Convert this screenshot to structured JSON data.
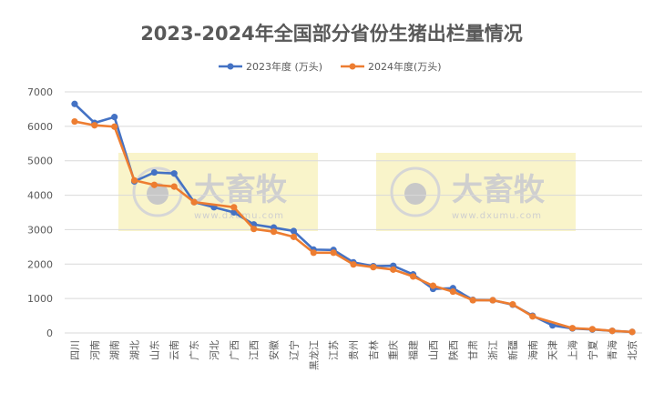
{
  "chart_data": {
    "type": "line",
    "title": "2023-2024年全国部分省份生猪出栏量情况",
    "xlabel": "",
    "ylabel": "",
    "ylim": [
      0,
      7000
    ],
    "yticks": [
      0,
      1000,
      2000,
      3000,
      4000,
      5000,
      6000,
      7000
    ],
    "grid": true,
    "legend_position": "top",
    "categories": [
      "四川",
      "河南",
      "湖南",
      "湖北",
      "山东",
      "云南",
      "广东",
      "河北",
      "广西",
      "江西",
      "安徽",
      "辽宁",
      "黑龙江",
      "江苏",
      "贵州",
      "吉林",
      "重庆",
      "福建",
      "山西",
      "陕西",
      "甘肃",
      "浙江",
      "新疆",
      "海南",
      "天津",
      "上海",
      "宁夏",
      "青海",
      "北京"
    ],
    "series": [
      {
        "name": "2023年度 (万头)",
        "color": "#4472C4",
        "values": [
          6650,
          6100,
          6270,
          4400,
          4660,
          4630,
          3800,
          3650,
          3500,
          3150,
          3060,
          2960,
          2420,
          2410,
          2050,
          1940,
          1950,
          1700,
          1280,
          1300,
          960,
          950,
          820,
          500,
          220,
          130,
          100,
          60,
          30
        ]
      },
      {
        "name": "2024年度(万头)",
        "color": "#ED7D31",
        "values": [
          6140,
          6030,
          5990,
          4430,
          4300,
          4250,
          3800,
          null,
          3650,
          3020,
          2940,
          2790,
          2330,
          2330,
          1990,
          1910,
          1840,
          1640,
          1370,
          1200,
          950,
          950,
          830,
          480,
          null,
          140,
          110,
          60,
          30
        ]
      }
    ],
    "watermark": {
      "text": "大畜牧",
      "url_text": "www.dxumu.com"
    }
  }
}
